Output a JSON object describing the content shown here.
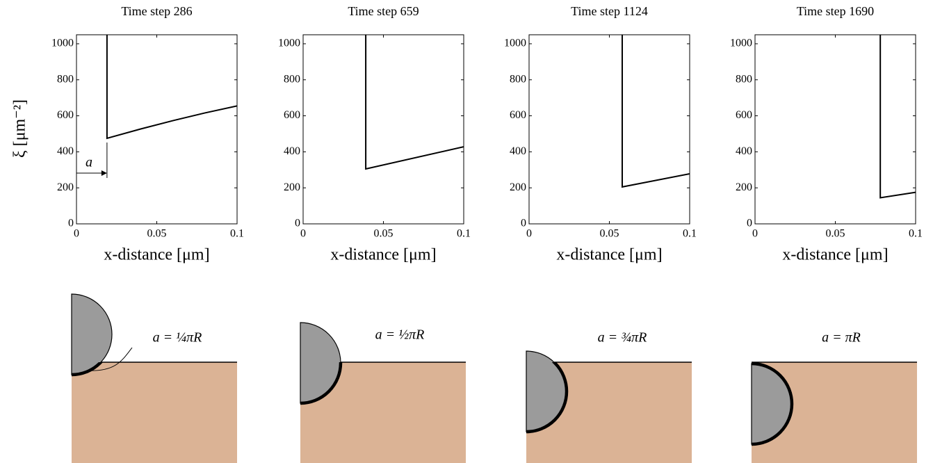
{
  "chart_data": [
    {
      "type": "line",
      "title": "Time step 286",
      "x_label": "x-distance [μm]",
      "y_label": "ξ [μm⁻²]",
      "annotation": "a",
      "x": [
        0.019,
        0.019,
        0.04,
        0.06,
        0.08,
        0.1
      ],
      "values": [
        1050,
        475,
        527,
        573,
        616,
        655
      ],
      "color": "#000000",
      "xlim": [
        0,
        0.1
      ],
      "ylim": [
        0,
        1050
      ],
      "xticks": [
        0,
        0.05,
        0.1
      ],
      "yticks": [
        0,
        200,
        400,
        600,
        800,
        1000
      ]
    },
    {
      "type": "line",
      "title": "Time step 659",
      "x_label": "x-distance [μm]",
      "x": [
        0.039,
        0.039,
        0.1
      ],
      "values": [
        1050,
        305,
        428
      ],
      "color": "#000000",
      "xlim": [
        0,
        0.1
      ],
      "ylim": [
        0,
        1050
      ],
      "xticks": [
        0,
        0.05,
        0.1
      ],
      "yticks": [
        0,
        200,
        400,
        600,
        800,
        1000
      ]
    },
    {
      "type": "line",
      "title": "Time step 1124",
      "x_label": "x-distance [μm]",
      "x": [
        0.058,
        0.058,
        0.1
      ],
      "values": [
        1050,
        205,
        278
      ],
      "color": "#000000",
      "xlim": [
        0,
        0.1
      ],
      "ylim": [
        0,
        1050
      ],
      "xticks": [
        0,
        0.05,
        0.1
      ],
      "yticks": [
        0,
        200,
        400,
        600,
        800,
        1000
      ]
    },
    {
      "type": "line",
      "title": "Time step 1690",
      "x_label": "x-distance [μm]",
      "x": [
        0.078,
        0.078,
        0.1
      ],
      "values": [
        1050,
        145,
        175
      ],
      "color": "#000000",
      "xlim": [
        0,
        0.1
      ],
      "ylim": [
        0,
        1050
      ],
      "xticks": [
        0,
        0.05,
        0.1
      ],
      "yticks": [
        0,
        200,
        400,
        600,
        800,
        1000
      ]
    }
  ],
  "diagrams": [
    {
      "label": "a = ¼πR"
    },
    {
      "label": "a = ½πR"
    },
    {
      "label": "a = ¾πR"
    },
    {
      "label": "a = πR"
    }
  ]
}
